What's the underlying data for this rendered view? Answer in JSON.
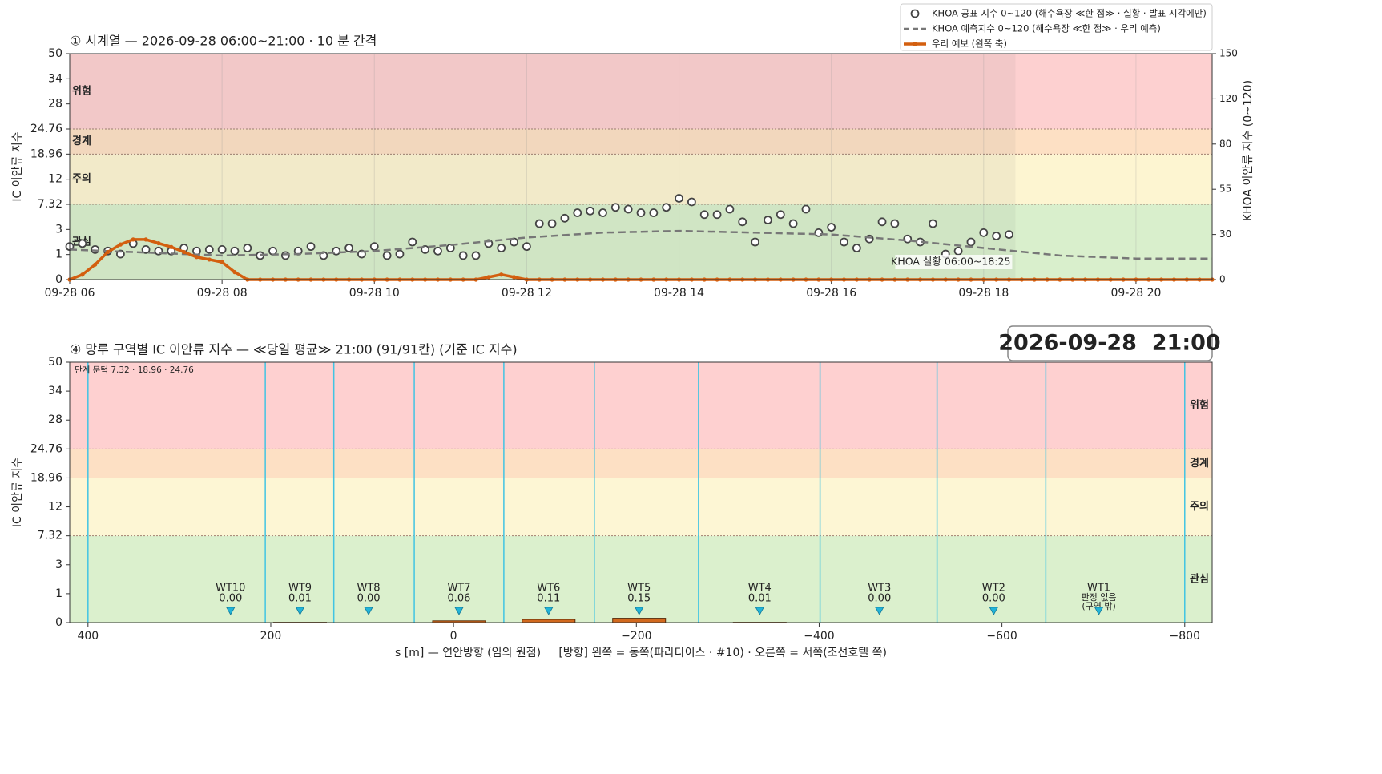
{
  "chart_data": [
    {
      "type": "line",
      "title": "① 시계열 — 2026-09-28 06:00~21:00 · 10 분 간격",
      "ylabel": "IC 이안류 지수",
      "y2label": "KHOA 이안류 지수 (0~120)",
      "xlim": [
        360,
        1260
      ],
      "xticks": [
        {
          "value": 360,
          "label": "09-28 06"
        },
        {
          "value": 480,
          "label": "09-28 08"
        },
        {
          "value": 600,
          "label": "09-28 10"
        },
        {
          "value": 720,
          "label": "09-28 12"
        },
        {
          "value": 840,
          "label": "09-28 14"
        },
        {
          "value": 960,
          "label": "09-28 16"
        },
        {
          "value": 1080,
          "label": "09-28 18"
        },
        {
          "value": 1200,
          "label": "09-28 20"
        }
      ],
      "ylim": [
        0,
        50
      ],
      "yticks": [
        0,
        1,
        3,
        7.32,
        12,
        18.96,
        24.76,
        28,
        34,
        50
      ],
      "yscale": "piecewise",
      "y2lim": [
        0,
        150
      ],
      "y2ticks": [
        0,
        30,
        55,
        80,
        120,
        150
      ],
      "grid": true,
      "legend": "upper right",
      "bands": [
        {
          "name": "관심",
          "range": [
            0,
            7.32
          ],
          "color": "#d9efcc"
        },
        {
          "name": "주의",
          "range": [
            7.32,
            18.96
          ],
          "color": "#fdf5d1"
        },
        {
          "name": "경계",
          "range": [
            18.96,
            24.76
          ],
          "color": "#fde0c4"
        },
        {
          "name": "위험",
          "range": [
            24.76,
            50
          ],
          "color": "#fdd0d0"
        }
      ],
      "observed_range": [
        360,
        1105
      ],
      "observed_label": "KHOA 실황 06:00~18:25",
      "series": [
        {
          "name": "KHOA 공표 지수 0~120 (해수욕장 ≪한 점≫ · 실황 · 발표 시각에만)",
          "style": "markers",
          "axis": "y2",
          "color": "#444444",
          "x": [
            360,
            370,
            380,
            390,
            400,
            410,
            420,
            430,
            440,
            450,
            460,
            470,
            480,
            490,
            500,
            510,
            520,
            530,
            540,
            550,
            560,
            570,
            580,
            590,
            600,
            610,
            620,
            630,
            640,
            650,
            660,
            670,
            680,
            690,
            700,
            710,
            720,
            730,
            740,
            750,
            760,
            770,
            780,
            790,
            800,
            810,
            820,
            830,
            840,
            850,
            860,
            870,
            880,
            890,
            900,
            910,
            920,
            930,
            940,
            950,
            960,
            970,
            980,
            990,
            1000,
            1010,
            1020,
            1030,
            1040,
            1050,
            1060,
            1070,
            1080,
            1090,
            1100
          ],
          "values": [
            22,
            24,
            20,
            19,
            17,
            24,
            20,
            19,
            19,
            21,
            19,
            20,
            20,
            19,
            21,
            16,
            19,
            16,
            19,
            22,
            16,
            19,
            21,
            17,
            22,
            16,
            17,
            25,
            20,
            19,
            21,
            16,
            16,
            24,
            21,
            25,
            22,
            36,
            36,
            39,
            42,
            43,
            42,
            45,
            44,
            42,
            42,
            45,
            50,
            48,
            41,
            41,
            44,
            37,
            25,
            38,
            41,
            36,
            44,
            31,
            34,
            25,
            21,
            27,
            37,
            36,
            27,
            25,
            36,
            17,
            19,
            25,
            31,
            29,
            30
          ]
        },
        {
          "name": "KHOA 예측지수 0~120 (해수욕장 ≪한 점≫ · 우리 예측)",
          "style": "dashed",
          "axis": "y2",
          "color": "#777777",
          "x": [
            360,
            420,
            480,
            540,
            600,
            660,
            720,
            780,
            840,
            900,
            960,
            1020,
            1080,
            1140,
            1200,
            1260
          ],
          "values": [
            20,
            18,
            16,
            17,
            19,
            23,
            28,
            31,
            32,
            31,
            30,
            26,
            21,
            16,
            14,
            14
          ]
        },
        {
          "name": "우리 예보 (왼쪽 축)",
          "style": "line-markers",
          "color": "#d35f0f",
          "x": [
            360,
            370,
            380,
            390,
            400,
            410,
            420,
            430,
            440,
            450,
            460,
            470,
            480,
            490,
            500,
            510,
            520,
            530,
            540,
            550,
            560,
            570,
            580,
            590,
            600,
            610,
            620,
            630,
            640,
            650,
            660,
            670,
            680,
            690,
            700,
            710,
            720,
            730,
            740,
            750,
            760,
            770,
            780,
            790,
            800,
            810,
            820,
            830,
            840,
            850,
            860,
            870,
            880,
            890,
            900,
            910,
            920,
            930,
            940,
            950,
            960,
            970,
            980,
            990,
            1000,
            1010,
            1020,
            1030,
            1040,
            1050,
            1060,
            1070,
            1080,
            1090,
            1100,
            1110,
            1120,
            1130,
            1140,
            1150,
            1160,
            1170,
            1180,
            1190,
            1200,
            1210,
            1220,
            1230,
            1240,
            1250,
            1260
          ],
          "values": [
            0,
            0.2,
            0.6,
            1.2,
            1.8,
            2.2,
            2.2,
            1.9,
            1.6,
            1.2,
            0.9,
            0.8,
            0.7,
            0.3,
            0,
            0,
            0,
            0,
            0,
            0,
            0,
            0,
            0,
            0,
            0,
            0,
            0,
            0,
            0,
            0,
            0,
            0,
            0,
            0.1,
            0.2,
            0.1,
            0,
            0,
            0,
            0,
            0,
            0,
            0,
            0,
            0,
            0,
            0,
            0,
            0,
            0,
            0,
            0,
            0,
            0,
            0,
            0,
            0,
            0,
            0,
            0,
            0,
            0,
            0,
            0,
            0,
            0,
            0,
            0,
            0,
            0,
            0,
            0,
            0,
            0,
            0,
            0,
            0,
            0,
            0,
            0,
            0,
            0,
            0,
            0,
            0,
            0,
            0,
            0,
            0,
            0,
            0
          ]
        }
      ]
    },
    {
      "type": "bar",
      "title": "④ 망루 구역별 IC 이안류 지수 — ≪당일 평균≫ 21:00  (91/91칸)   (기준 IC 지수)",
      "timestamp": "2026-09-28  21:00",
      "threshold_note": "단계 문턱 7.32 · 18.96 · 24.76",
      "xlabel": "s [m] — 연안방향 (임의 원점)     [방향] 왼쪽 = 동쪽(파라다이스 · #10) · 오른쪽 = 서쪽(조선호텔 쪽)",
      "ylabel": "IC 이안류 지수",
      "xlim": [
        420,
        -830
      ],
      "xticks": [
        400,
        200,
        0,
        {
          "value": -200,
          "label": "−200"
        },
        {
          "value": -400,
          "label": "−400"
        },
        {
          "value": -600,
          "label": "−600"
        },
        {
          "value": -800,
          "label": "−800"
        }
      ],
      "ylim": [
        0,
        50
      ],
      "yticks": [
        0,
        1,
        3,
        7.32,
        12,
        18.96,
        24.76,
        28,
        34,
        50
      ],
      "yscale": "piecewise",
      "bands": [
        {
          "name": "관심",
          "range": [
            0,
            7.32
          ],
          "color": "#dbf0cd"
        },
        {
          "name": "주의",
          "range": [
            7.32,
            18.96
          ],
          "color": "#fdf6d4"
        },
        {
          "name": "경계",
          "range": [
            18.96,
            24.76
          ],
          "color": "#fde0c4"
        },
        {
          "name": "위험",
          "range": [
            24.76,
            50
          ],
          "color": "#fed0d0"
        }
      ],
      "boundaries": [
        400,
        206,
        131,
        43,
        -55,
        -154,
        -268,
        -401,
        -529,
        -648,
        -800
      ],
      "categories": [
        "WT10",
        "WT9",
        "WT8",
        "WT7",
        "WT6",
        "WT5",
        "WT4",
        "WT3",
        "WT2",
        "WT1"
      ],
      "x": [
        244,
        168,
        93,
        -6,
        -104,
        -203,
        -335,
        -466,
        -591,
        -706
      ],
      "values": [
        0,
        0.01,
        0,
        0.06,
        0.11,
        0.15,
        0.01,
        0,
        0,
        null
      ],
      "value_labels": [
        "0.00",
        "0.01",
        "0.00",
        "0.06",
        "0.11",
        "0.15",
        "0.01",
        "0.00",
        "0.00",
        null
      ],
      "out_of_zone_label": [
        "판정 없음",
        "(구역 밖)"
      ],
      "color": "#d2691e"
    }
  ]
}
